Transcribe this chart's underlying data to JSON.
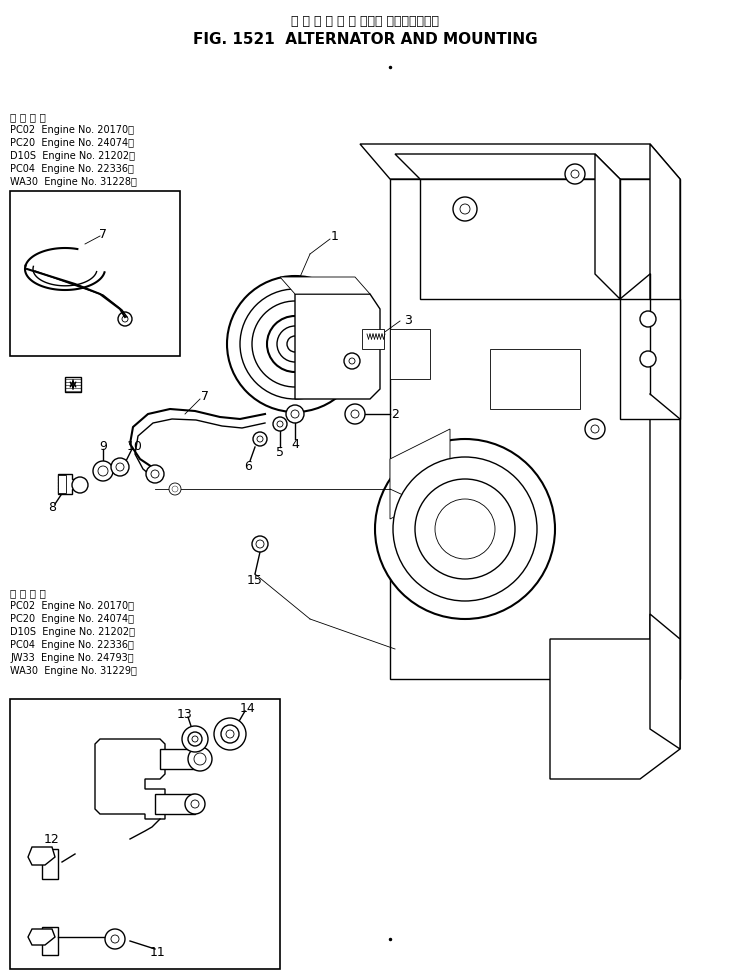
{
  "title_jp": "オ ル タ ネ ー タ および マウンティング",
  "title_en": "FIG. 1521  ALTERNATOR AND MOUNTING",
  "bg_color": "#ffffff",
  "fig_width": 7.3,
  "fig_height": 9.79,
  "top_info_lines": [
    "適 用 号 機",
    "PC02  Engine No. 20170～",
    "PC20  Engine No. 24074～",
    "D10S  Engine No. 21202～",
    "PC04  Engine No. 22336～",
    "WA30  Engine No. 31228～"
  ],
  "bottom_info_lines": [
    "適 用 号 機",
    "PC02  Engine No. 20170～",
    "PC20  Engine No. 24074～",
    "D10S  Engine No. 21202～",
    "PC04  Engine No. 22336～",
    "JW33  Engine No. 24793～",
    "WA30  Engine No. 31229～"
  ],
  "lw": 1.0,
  "lw_thick": 1.5,
  "lw_thin": 0.6,
  "line_color": "#000000",
  "text_color": "#000000",
  "label_fontsize": 9,
  "info_fontsize": 7
}
